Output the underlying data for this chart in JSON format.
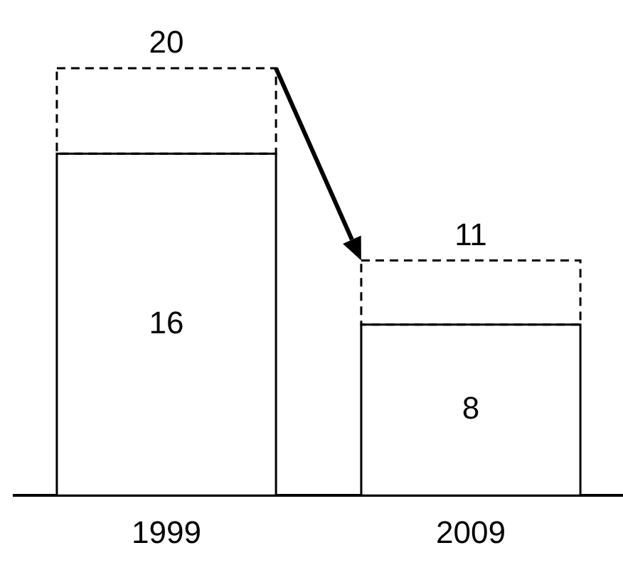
{
  "chart_data": {
    "type": "bar",
    "stacked": true,
    "categories": [
      "1999",
      "2009"
    ],
    "series": [
      {
        "color": "#ffffff",
        "line_style": "solid",
        "values": [
          16,
          8
        ],
        "value_labels": [
          "16",
          "8"
        ]
      },
      {
        "color": "#ffffff",
        "line_style": "dashed",
        "values": [
          4,
          3
        ]
      }
    ],
    "totals": [
      "20",
      "11"
    ]
  }
}
